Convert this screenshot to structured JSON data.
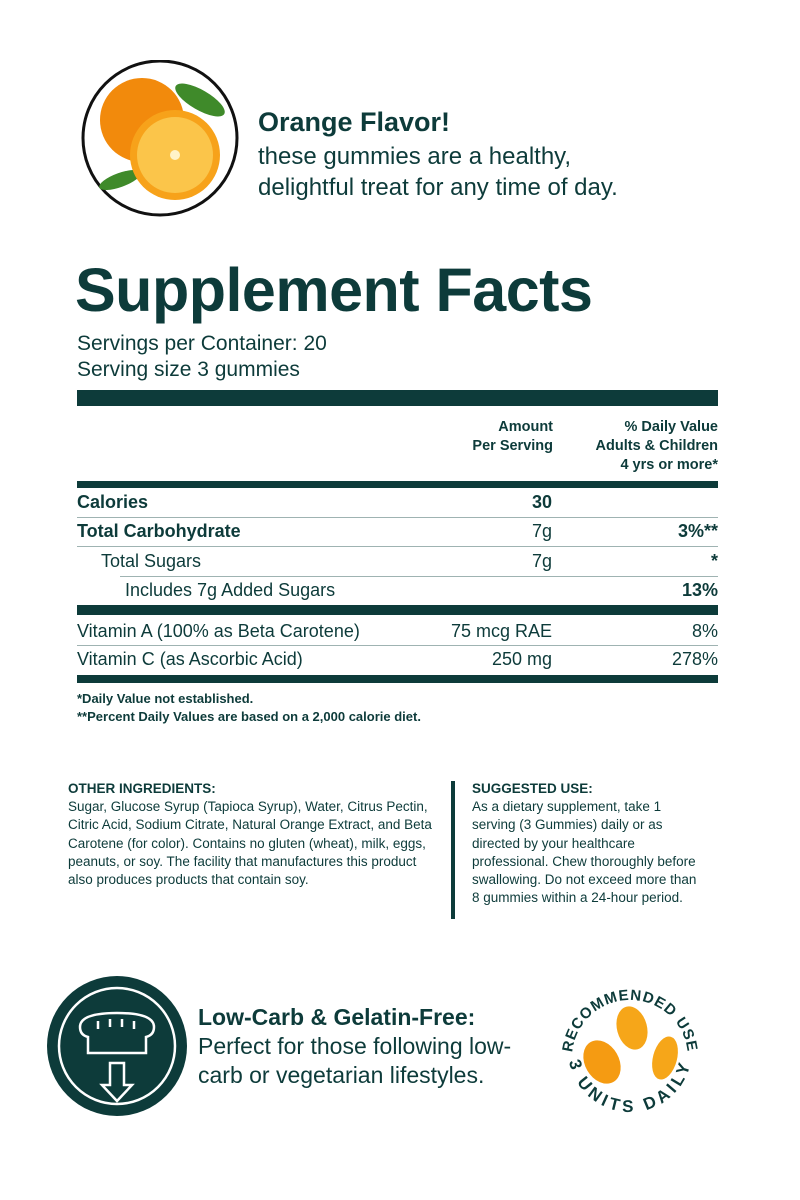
{
  "header": {
    "title": "Orange Flavor!",
    "line1": "these gummies are a healthy,",
    "line2": "delightful treat for any time of day."
  },
  "facts": {
    "title": "Supplement Facts",
    "servings_per_container": "Servings per Container: 20",
    "serving_size": "Serving size 3 gummies",
    "col_amount": [
      "Amount",
      "Per Serving"
    ],
    "col_dv": [
      "% Daily Value",
      "Adults & Children",
      "4 yrs or more*"
    ],
    "rows": [
      {
        "name": "Calories",
        "amount": "30",
        "dv": ""
      },
      {
        "name": "Total Carbohydrate",
        "amount": "7g",
        "dv": "3%**"
      },
      {
        "name": "Total Sugars",
        "amount": "7g",
        "dv": "*"
      },
      {
        "name": "Includes 7g Added Sugars",
        "amount": "",
        "dv": "13%"
      },
      {
        "name": "Vitamin A (100% as Beta Carotene)",
        "amount": "75 mcg RAE",
        "dv": "8%"
      },
      {
        "name": "Vitamin C (as Ascorbic Acid)",
        "amount": "250 mg",
        "dv": "278%"
      }
    ],
    "footnote1": "*Daily Value not established.",
    "footnote2": "**Percent Daily Values are based on a 2,000 calorie diet."
  },
  "ingredients": {
    "title": "OTHER INGREDIENTS:",
    "text": "Sugar, Glucose Syrup (Tapioca Syrup), Water, Citrus Pectin, Citric Acid, Sodium Citrate, Natural Orange Extract, and Beta Carotene (for color). Contains no gluten (wheat), milk, eggs, peanuts, or soy. The facility that manufactures this product also produces products that contain soy."
  },
  "suggested": {
    "title": "SUGGESTED USE:",
    "text": "As a dietary supplement, take 1 serving (3 Gummies) daily or as directed by your healthcare professional. Chew thoroughly before swallowing. Do not exceed more than 8 gummies within a 24-hour period."
  },
  "feature": {
    "title": "Low-Carb & Gelatin-Free:",
    "text": "Perfect for those following low-carb or vegetarian lifestyles."
  },
  "badge": {
    "top": "RECOMMENDED USE",
    "bottom": "3 UNITS DAILY"
  },
  "colors": {
    "primary": "#0d3b3a",
    "orange": "#f5a623"
  }
}
